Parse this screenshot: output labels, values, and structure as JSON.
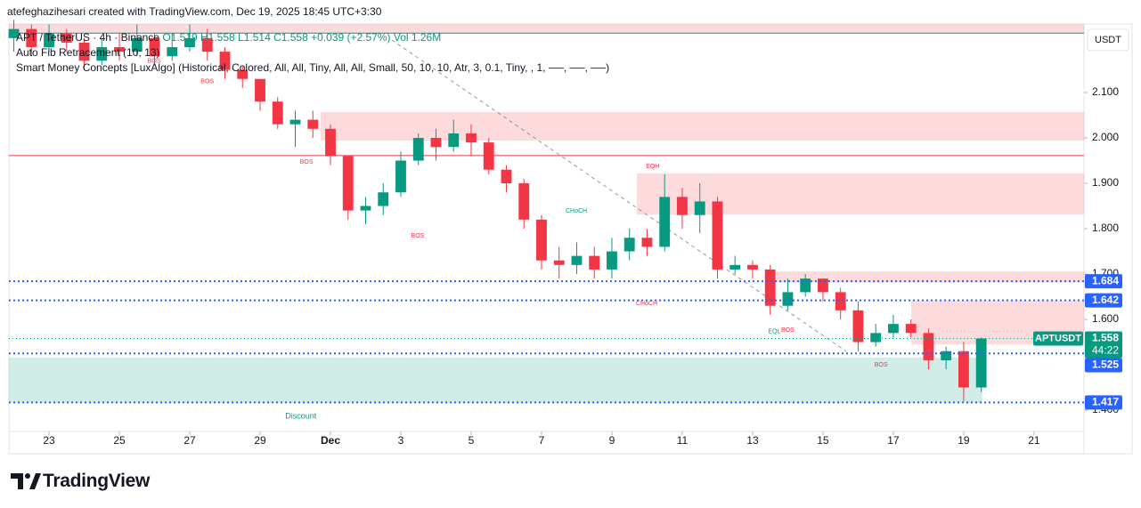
{
  "header": {
    "credit": "atefeghazihesari created with TradingView.com, Dec 19, 2025 18:45 UTC+3:30",
    "symbol": "APT / TetherUS · 4h · Binance",
    "ohlc": "O1.519 H1.558 L1.514 C1.558 +0.039 (+2.57%)",
    "volume": "Vol 1.26M",
    "indicators": [
      "Auto Fib Retracement (10; 13)",
      "Smart Money Concepts [LuxAlgo] (Historical, Colored, All, All, Tiny, All, All, Small, 50, 10, 10, Atr, 3, 0.1, Tiny, , 1, ──, ──, ──)"
    ]
  },
  "footer": {
    "brand": "TradingView"
  },
  "chart_data": {
    "type": "candlestick",
    "axis_label": "USDT",
    "up_color": "#089981",
    "down_color": "#f23645",
    "x": [
      22,
      22.5,
      23,
      23.5,
      24,
      24.5,
      25,
      25.5,
      26,
      26.5,
      27,
      27.5,
      28,
      28.5,
      29,
      29.5,
      30,
      30.5,
      31,
      31.5,
      32,
      32.5,
      33,
      33.5,
      34,
      34.5,
      35,
      35.5,
      36,
      36.5,
      37,
      37.5,
      38,
      38.5,
      39,
      39.5,
      40,
      40.5,
      41,
      41.5,
      42,
      42.5,
      43,
      43.5,
      44,
      44.5,
      45,
      45.5,
      46,
      46.5,
      47,
      47.5,
      48,
      48.5,
      49,
      49.5
    ],
    "open": [
      2.22,
      2.24,
      2.2,
      2.23,
      2.21,
      2.17,
      2.2,
      2.19,
      2.22,
      2.18,
      2.2,
      2.22,
      2.19,
      2.15,
      2.13,
      2.08,
      2.03,
      2.04,
      2.02,
      1.96,
      1.84,
      1.85,
      1.88,
      1.95,
      2.0,
      1.98,
      2.01,
      1.99,
      1.93,
      1.9,
      1.82,
      1.73,
      1.72,
      1.74,
      1.71,
      1.75,
      1.78,
      1.76,
      1.87,
      1.83,
      1.86,
      1.71,
      1.72,
      1.71,
      1.63,
      1.66,
      1.69,
      1.66,
      1.62,
      1.55,
      1.57,
      1.59,
      1.57,
      1.51,
      1.53,
      1.45
    ],
    "high": [
      2.26,
      2.25,
      2.25,
      2.24,
      2.22,
      2.22,
      2.23,
      2.25,
      2.23,
      2.23,
      2.25,
      2.24,
      2.2,
      2.16,
      2.13,
      2.09,
      2.06,
      2.06,
      2.03,
      1.96,
      1.87,
      1.9,
      1.97,
      2.01,
      2.02,
      2.04,
      2.03,
      2.0,
      1.94,
      1.91,
      1.83,
      1.76,
      1.77,
      1.76,
      1.78,
      1.8,
      1.8,
      1.92,
      1.89,
      1.9,
      1.87,
      1.74,
      1.73,
      1.72,
      1.69,
      1.7,
      1.69,
      1.67,
      1.64,
      1.59,
      1.61,
      1.6,
      1.58,
      1.54,
      1.55,
      1.56
    ],
    "low": [
      2.19,
      2.18,
      2.19,
      2.19,
      2.15,
      2.16,
      2.17,
      2.18,
      2.16,
      2.17,
      2.19,
      2.17,
      2.13,
      2.11,
      2.06,
      2.02,
      1.98,
      2.0,
      1.94,
      1.82,
      1.81,
      1.83,
      1.87,
      1.94,
      1.95,
      1.97,
      1.96,
      1.92,
      1.88,
      1.8,
      1.71,
      1.69,
      1.7,
      1.69,
      1.69,
      1.73,
      1.74,
      1.75,
      1.8,
      1.79,
      1.69,
      1.7,
      1.69,
      1.61,
      1.62,
      1.65,
      1.64,
      1.6,
      1.53,
      1.54,
      1.56,
      1.56,
      1.49,
      1.49,
      1.42,
      1.44
    ],
    "close": [
      2.24,
      2.2,
      2.23,
      2.21,
      2.17,
      2.2,
      2.19,
      2.22,
      2.18,
      2.2,
      2.22,
      2.19,
      2.15,
      2.13,
      2.08,
      2.03,
      2.04,
      2.02,
      1.96,
      1.84,
      1.85,
      1.88,
      1.95,
      2.0,
      1.98,
      2.01,
      1.99,
      1.93,
      1.9,
      1.82,
      1.73,
      1.72,
      1.74,
      1.71,
      1.75,
      1.78,
      1.76,
      1.87,
      1.83,
      1.86,
      1.71,
      1.72,
      1.71,
      1.63,
      1.66,
      1.69,
      1.66,
      1.62,
      1.55,
      1.57,
      1.59,
      1.57,
      1.51,
      1.53,
      1.45,
      1.558
    ],
    "xlim": [
      21.86,
      52.42
    ],
    "ylim": [
      1.353,
      2.251
    ],
    "xticks": [
      23,
      25,
      27,
      29,
      {
        "value": 31,
        "label": "Dec"
      },
      {
        "value": 33,
        "label": "3"
      },
      {
        "value": 35,
        "label": "5"
      },
      {
        "value": 37,
        "label": "7"
      },
      {
        "value": 39,
        "label": "9"
      },
      {
        "value": 41,
        "label": "11"
      },
      {
        "value": 43,
        "label": "13"
      },
      {
        "value": 45,
        "label": "15"
      },
      {
        "value": 47,
        "label": "17"
      },
      {
        "value": 49,
        "label": "19"
      },
      {
        "value": 51,
        "label": "21"
      }
    ],
    "yticks": [
      {
        "value": 1.4,
        "label": "1.400"
      },
      {
        "value": 1.6,
        "label": "1.600"
      },
      {
        "value": 1.7,
        "label": "1.700"
      },
      {
        "value": 1.8,
        "label": "1.800"
      },
      {
        "value": 1.9,
        "label": "1.900"
      },
      {
        "value": 2.0,
        "label": "2.000"
      },
      {
        "value": 2.1,
        "label": "2.100"
      }
    ],
    "grid": false,
    "zones": [
      {
        "x": [
          21.86,
          52.42
        ],
        "y": [
          2.231,
          2.251
        ],
        "color": "#f23645"
      },
      {
        "x": [
          30.72,
          52.42
        ],
        "y": [
          1.994,
          2.057
        ],
        "color": "#f23645"
      },
      {
        "x": [
          39.71,
          52.42
        ],
        "y": [
          1.831,
          1.922
        ],
        "color": "#f23645"
      },
      {
        "x": [
          43.68,
          52.42
        ],
        "y": [
          1.682,
          1.706
        ],
        "color": "#f23645"
      },
      {
        "x": [
          47.51,
          52.42
        ],
        "y": [
          1.545,
          1.641
        ],
        "color": "#f23645"
      },
      {
        "x": [
          21.86,
          49.53
        ],
        "y": [
          1.416,
          1.516
        ],
        "color": "#089981"
      }
    ],
    "level_lines": [
      {
        "value": 1.961,
        "color": "#f23645"
      },
      {
        "value": 2.231,
        "color": "#089981"
      }
    ],
    "price_lines": [
      {
        "value": 1.684,
        "color": "#2962ff"
      },
      {
        "value": 1.642,
        "color": "#2962ff"
      },
      {
        "value": 1.525,
        "color": "#2962ff"
      },
      {
        "value": 1.417,
        "color": "#2962ff"
      }
    ],
    "last_price": {
      "name": "APTUSDT",
      "value": 1.558,
      "countdown": "44:22",
      "color": "#089981"
    },
    "annotations": [
      {
        "text": "BOS",
        "x": 25.99,
        "y": 2.169,
        "color": "#f23645"
      },
      {
        "text": "BOS",
        "x": 27.5,
        "y": 2.124,
        "color": "#f23645"
      },
      {
        "text": "BOS",
        "x": 30.32,
        "y": 1.947,
        "color": "#f23645"
      },
      {
        "text": "BOS",
        "x": 33.48,
        "y": 1.784,
        "color": "#f23645"
      },
      {
        "text": "CHoCH",
        "x": 37.99,
        "y": 1.839,
        "color": "#089981"
      },
      {
        "text": "EQH",
        "x": 40.16,
        "y": 1.937,
        "color": "#f23645"
      },
      {
        "text": "CHoCH",
        "x": 39.99,
        "y": 1.635,
        "color": "#f23645"
      },
      {
        "text": "EQL",
        "x": 43.62,
        "y": 1.573,
        "color": "#089981"
      },
      {
        "text": "BOS",
        "x": 44.0,
        "y": 1.576,
        "color": "#f23645"
      },
      {
        "text": "BOS",
        "x": 46.65,
        "y": 1.5,
        "color": "#f23645"
      },
      {
        "text": "Discount",
        "x": 30.16,
        "y": 1.386,
        "color": "#089981"
      }
    ]
  }
}
